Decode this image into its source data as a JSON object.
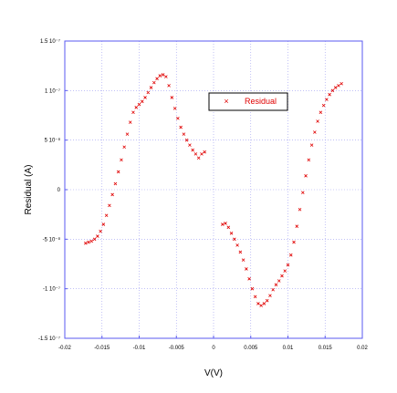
{
  "chart_data": {
    "type": "scatter",
    "xlabel": "V(V)",
    "ylabel": "Residual (A)",
    "xlim": [
      -0.02,
      0.02
    ],
    "ylim": [
      -1.5e-07,
      1.5e-07
    ],
    "grid": true,
    "legend_position": "top-right",
    "x_ticks": [
      {
        "value": -0.02,
        "label": "-0.02"
      },
      {
        "value": -0.015,
        "label": "-0.015"
      },
      {
        "value": -0.01,
        "label": "-0.01"
      },
      {
        "value": -0.005,
        "label": "-0.005"
      },
      {
        "value": 0,
        "label": "0"
      },
      {
        "value": 0.005,
        "label": "0.005"
      },
      {
        "value": 0.01,
        "label": "0.01"
      },
      {
        "value": 0.015,
        "label": "0.015"
      },
      {
        "value": 0.02,
        "label": "0.02"
      }
    ],
    "y_ticks": [
      {
        "value": 1.5e-07,
        "label": "1.5 10⁻⁷"
      },
      {
        "value": 1e-07,
        "label": "1 10⁻⁷"
      },
      {
        "value": 5e-08,
        "label": "5 10⁻⁸"
      },
      {
        "value": 0,
        "label": "0"
      },
      {
        "value": -5e-08,
        "label": "-5 10⁻⁸"
      },
      {
        "value": -1e-07,
        "label": "-1 10⁻⁷"
      },
      {
        "value": -1.5e-07,
        "label": "-1.5 10⁻⁷"
      }
    ],
    "series": [
      {
        "name": "Residual",
        "color": "#e00000",
        "marker": "x",
        "x": [
          -0.0172,
          -0.0168,
          -0.0164,
          -0.016,
          -0.0156,
          -0.0152,
          -0.0148,
          -0.0144,
          -0.014,
          -0.0136,
          -0.0132,
          -0.0128,
          -0.0124,
          -0.012,
          -0.0116,
          -0.0112,
          -0.0108,
          -0.0104,
          -0.01,
          -0.0096,
          -0.0092,
          -0.0088,
          -0.0084,
          -0.008,
          -0.0076,
          -0.0072,
          -0.0068,
          -0.0064,
          -0.006,
          -0.0056,
          -0.0052,
          -0.0048,
          -0.0044,
          -0.004,
          -0.0036,
          -0.0032,
          -0.0028,
          -0.0024,
          -0.002,
          -0.0016,
          -0.0012,
          0.0012,
          0.0016,
          0.002,
          0.0024,
          0.0028,
          0.0032,
          0.0036,
          0.004,
          0.0044,
          0.0048,
          0.0052,
          0.0056,
          0.006,
          0.0064,
          0.0068,
          0.0072,
          0.0076,
          0.008,
          0.0084,
          0.0088,
          0.0092,
          0.0096,
          0.01,
          0.0104,
          0.0108,
          0.0112,
          0.0116,
          0.012,
          0.0124,
          0.0128,
          0.0132,
          0.0136,
          0.014,
          0.0144,
          0.0148,
          0.0152,
          0.0156,
          0.016,
          0.0164,
          0.0168,
          0.0172
        ],
        "y": [
          -5.4e-08,
          -5.3e-08,
          -5.2e-08,
          -5e-08,
          -4.7e-08,
          -4.2e-08,
          -3.5e-08,
          -2.6e-08,
          -1.6e-08,
          -5e-09,
          6e-09,
          1.8e-08,
          3e-08,
          4.3e-08,
          5.6e-08,
          6.8e-08,
          7.8e-08,
          8.3e-08,
          8.6e-08,
          8.9e-08,
          9.3e-08,
          9.8e-08,
          1.03e-07,
          1.08e-07,
          1.12e-07,
          1.15e-07,
          1.16e-07,
          1.14e-07,
          1.05e-07,
          9.3e-08,
          8.2e-08,
          7.2e-08,
          6.3e-08,
          5.6e-08,
          5e-08,
          4.5e-08,
          4e-08,
          3.6e-08,
          3.2e-08,
          3.6e-08,
          3.8e-08,
          -3.5e-08,
          -3.4e-08,
          -3.8e-08,
          -4.4e-08,
          -5e-08,
          -5.6e-08,
          -6.3e-08,
          -7.1e-08,
          -8e-08,
          -9e-08,
          -1e-07,
          -1.08e-07,
          -1.15e-07,
          -1.17e-07,
          -1.15e-07,
          -1.12e-07,
          -1.07e-07,
          -1.01e-07,
          -9.6e-08,
          -9.2e-08,
          -8.7e-08,
          -8.2e-08,
          -7.6e-08,
          -6.6e-08,
          -5.3e-08,
          -3.7e-08,
          -2e-08,
          -3e-09,
          1.4e-08,
          3e-08,
          4.5e-08,
          5.8e-08,
          6.9e-08,
          7.8e-08,
          8.5e-08,
          9.1e-08,
          9.6e-08,
          1e-07,
          1.03e-07,
          1.05e-07,
          1.07e-07
        ]
      }
    ],
    "legend": [
      {
        "label": "Residual"
      }
    ]
  }
}
